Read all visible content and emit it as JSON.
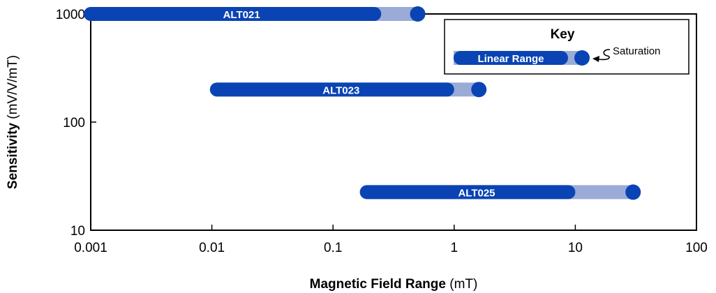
{
  "colors": {
    "linear": "#0a44b4",
    "saturation_band": "#9aabd8",
    "axis": "#000000",
    "background": "#ffffff"
  },
  "chart_data": {
    "type": "range-bar",
    "xlabel_bold": "Magnetic Field Range",
    "xlabel_unit": " (mT)",
    "ylabel_bold": "Sensitivity",
    "ylabel_unit": " (mV/V/mT)",
    "x_scale": "log",
    "y_scale": "log",
    "xlim": [
      0.001,
      100
    ],
    "ylim": [
      10,
      1000
    ],
    "x_ticks": [
      0.001,
      0.01,
      0.1,
      1,
      10,
      100
    ],
    "x_tick_labels": [
      "0.001",
      "0.01",
      "0.1",
      "1",
      "10",
      "100"
    ],
    "y_ticks": [
      10,
      100,
      1000
    ],
    "y_tick_labels": [
      "10",
      "100",
      "1000"
    ],
    "grid": false,
    "series": [
      {
        "name": "ALT021",
        "sensitivity": 1000,
        "linear_min": 0.001,
        "linear_max": 0.25,
        "saturation": 0.5
      },
      {
        "name": "ALT023",
        "sensitivity": 200,
        "linear_min": 0.011,
        "linear_max": 1.0,
        "saturation": 1.6
      },
      {
        "name": "ALT025",
        "sensitivity": 22.5,
        "linear_min": 0.19,
        "linear_max": 10,
        "saturation": 30
      }
    ],
    "legend": {
      "title": "Key",
      "linear_label": "Linear Range",
      "saturation_label": "Saturation",
      "position": "top-right"
    }
  }
}
